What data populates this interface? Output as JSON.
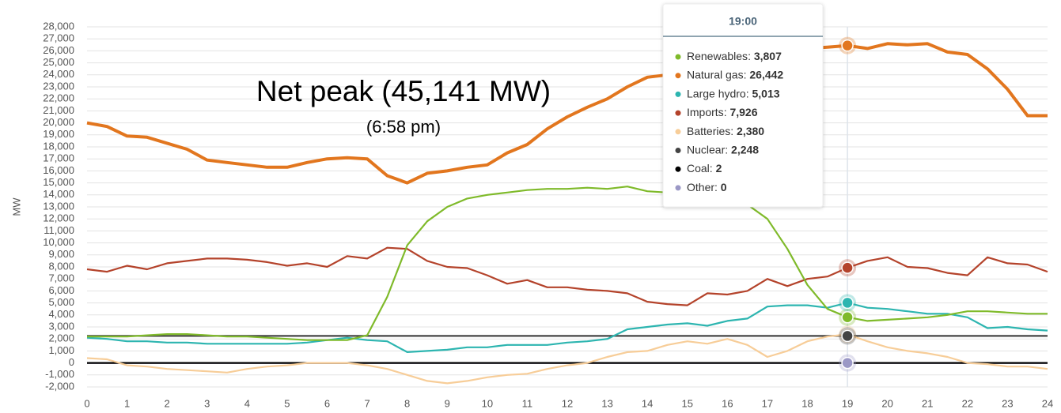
{
  "chart_data": {
    "type": "line",
    "y_label": "MW",
    "annotation": "Net peak (45,141 MW)",
    "annotation_sub": "(6:58 pm)",
    "grid": true,
    "x": [
      0,
      0.5,
      1,
      1.5,
      2,
      2.5,
      3,
      3.5,
      4,
      4.5,
      5,
      5.5,
      6,
      6.5,
      7,
      7.5,
      8,
      8.5,
      9,
      9.5,
      10,
      10.5,
      11,
      11.5,
      12,
      12.5,
      13,
      13.5,
      14,
      14.5,
      15,
      15.5,
      16,
      16.5,
      17,
      17.5,
      18,
      18.5,
      19,
      19.5,
      20,
      20.5,
      21,
      21.5,
      22,
      22.5,
      23,
      23.5,
      24
    ],
    "xlim": [
      0,
      24
    ],
    "xticks": [
      0,
      1,
      2,
      3,
      4,
      5,
      6,
      7,
      8,
      9,
      10,
      11,
      12,
      13,
      14,
      15,
      16,
      17,
      18,
      19,
      20,
      21,
      22,
      23,
      24
    ],
    "ylim": [
      -2000,
      28000
    ],
    "yticks": [
      {
        "value": -2000,
        "label": "-2,000"
      },
      {
        "value": -1000,
        "label": "-1,000"
      },
      0,
      {
        "value": 1000,
        "label": "1,000"
      },
      {
        "value": 2000,
        "label": "2,000"
      },
      {
        "value": 3000,
        "label": "3,000"
      },
      {
        "value": 4000,
        "label": "4,000"
      },
      {
        "value": 5000,
        "label": "5,000"
      },
      {
        "value": 6000,
        "label": "6,000"
      },
      {
        "value": 7000,
        "label": "7,000"
      },
      {
        "value": 8000,
        "label": "8,000"
      },
      {
        "value": 9000,
        "label": "9,000"
      },
      {
        "value": 10000,
        "label": "10,000"
      },
      {
        "value": 11000,
        "label": "11,000"
      },
      {
        "value": 12000,
        "label": "12,000"
      },
      {
        "value": 13000,
        "label": "13,000"
      },
      {
        "value": 14000,
        "label": "14,000"
      },
      {
        "value": 15000,
        "label": "15,000"
      },
      {
        "value": 16000,
        "label": "16,000"
      },
      {
        "value": 17000,
        "label": "17,000"
      },
      {
        "value": 18000,
        "label": "18,000"
      },
      {
        "value": 19000,
        "label": "19,000"
      },
      {
        "value": 20000,
        "label": "20,000"
      },
      {
        "value": 21000,
        "label": "21,000"
      },
      {
        "value": 22000,
        "label": "22,000"
      },
      {
        "value": 23000,
        "label": "23,000"
      },
      {
        "value": 24000,
        "label": "24,000"
      },
      {
        "value": 25000,
        "label": "25,000"
      },
      {
        "value": 26000,
        "label": "26,000"
      },
      {
        "value": 27000,
        "label": "27,000"
      },
      {
        "value": 28000,
        "label": "28,000"
      }
    ],
    "tooltip": {
      "title": "19:00",
      "x": 19,
      "separator": ": ",
      "values": [
        "3,807",
        "26,442",
        "5,013",
        "7,926",
        "2,380",
        "2,248",
        "2",
        "0"
      ]
    },
    "series": [
      {
        "name": "Renewables",
        "color": "#7fba2a",
        "values": [
          2200,
          2200,
          2200,
          2300,
          2400,
          2400,
          2300,
          2200,
          2200,
          2100,
          2000,
          1900,
          1900,
          1900,
          2300,
          5500,
          9800,
          11800,
          13000,
          13700,
          14000,
          14200,
          14400,
          14500,
          14500,
          14600,
          14500,
          14700,
          14300,
          14200,
          14100,
          14000,
          13800,
          13200,
          12000,
          9500,
          6500,
          4500,
          3807,
          3500,
          3600,
          3700,
          3800,
          4000,
          4300,
          4300,
          4200,
          4100,
          4100
        ]
      },
      {
        "name": "Natural gas",
        "color": "#e2761e",
        "values": [
          20000,
          19700,
          18900,
          18800,
          18300,
          17800,
          16900,
          16700,
          16500,
          16300,
          16300,
          16700,
          17000,
          17100,
          17000,
          15600,
          15000,
          15800,
          16000,
          16300,
          16500,
          17500,
          18200,
          19500,
          20500,
          21300,
          22000,
          23000,
          23800,
          24000,
          24500,
          25000,
          25500,
          25800,
          26000,
          26000,
          26200,
          26300,
          26442,
          26200,
          26600,
          26500,
          26600,
          25900,
          25700,
          24500,
          22800,
          20600,
          20600
        ]
      },
      {
        "name": "Large hydro",
        "color": "#2db5b0",
        "values": [
          2100,
          2000,
          1800,
          1800,
          1700,
          1700,
          1600,
          1600,
          1600,
          1600,
          1600,
          1700,
          1900,
          2100,
          1900,
          1800,
          900,
          1000,
          1100,
          1300,
          1300,
          1500,
          1500,
          1500,
          1700,
          1800,
          2000,
          2800,
          3000,
          3200,
          3300,
          3100,
          3500,
          3700,
          4700,
          4800,
          4800,
          4600,
          5013,
          4600,
          4500,
          4300,
          4100,
          4100,
          3800,
          2900,
          3000,
          2800,
          2700
        ]
      },
      {
        "name": "Imports",
        "color": "#b4432b",
        "values": [
          7800,
          7600,
          8100,
          7800,
          8300,
          8500,
          8700,
          8700,
          8600,
          8400,
          8100,
          8300,
          8000,
          8900,
          8700,
          9600,
          9500,
          8500,
          8000,
          7900,
          7300,
          6600,
          6900,
          6300,
          6300,
          6100,
          6000,
          5800,
          5100,
          4900,
          4800,
          5800,
          5700,
          6000,
          7000,
          6400,
          7000,
          7200,
          7926,
          8500,
          8800,
          8000,
          7900,
          7500,
          7300,
          8800,
          8300,
          8200,
          7600
        ]
      },
      {
        "name": "Batteries",
        "color": "#f7cd98",
        "values": [
          400,
          300,
          -200,
          -300,
          -500,
          -600,
          -700,
          -800,
          -500,
          -300,
          -200,
          0,
          0,
          0,
          -200,
          -500,
          -1000,
          -1500,
          -1700,
          -1500,
          -1200,
          -1000,
          -900,
          -500,
          -200,
          0,
          500,
          900,
          1000,
          1500,
          1800,
          1600,
          2000,
          1500,
          500,
          1000,
          1800,
          2200,
          2380,
          1800,
          1300,
          1000,
          800,
          500,
          0,
          -100,
          -300,
          -300,
          -500
        ]
      },
      {
        "name": "Nuclear",
        "color": "#444444",
        "values": [
          2248,
          2248,
          2248,
          2248,
          2248,
          2248,
          2248,
          2248,
          2248,
          2248,
          2248,
          2248,
          2248,
          2248,
          2248,
          2248,
          2248,
          2248,
          2248,
          2248,
          2248,
          2248,
          2248,
          2248,
          2248,
          2248,
          2248,
          2248,
          2248,
          2248,
          2248,
          2248,
          2248,
          2248,
          2248,
          2248,
          2248,
          2248,
          2248,
          2248,
          2248,
          2248,
          2248,
          2248,
          2248,
          2248,
          2248,
          2248,
          2248
        ]
      },
      {
        "name": "Coal",
        "color": "#000000",
        "values": [
          2,
          2,
          2,
          2,
          2,
          2,
          2,
          2,
          2,
          2,
          2,
          2,
          2,
          2,
          2,
          2,
          2,
          2,
          2,
          2,
          2,
          2,
          2,
          2,
          2,
          2,
          2,
          2,
          2,
          2,
          2,
          2,
          2,
          2,
          2,
          2,
          2,
          2,
          2,
          2,
          2,
          2,
          2,
          2,
          2,
          2,
          2,
          2,
          2
        ]
      },
      {
        "name": "Other",
        "color": "#9b98c6",
        "values": [
          0,
          0,
          0,
          0,
          0,
          0,
          0,
          0,
          0,
          0,
          0,
          0,
          0,
          0,
          0,
          0,
          0,
          0,
          0,
          0,
          0,
          0,
          0,
          0,
          0,
          0,
          0,
          0,
          0,
          0,
          0,
          0,
          0,
          0,
          0,
          0,
          0,
          0,
          0,
          0,
          0,
          0,
          0,
          0,
          0,
          0,
          0,
          0,
          0
        ]
      }
    ]
  }
}
